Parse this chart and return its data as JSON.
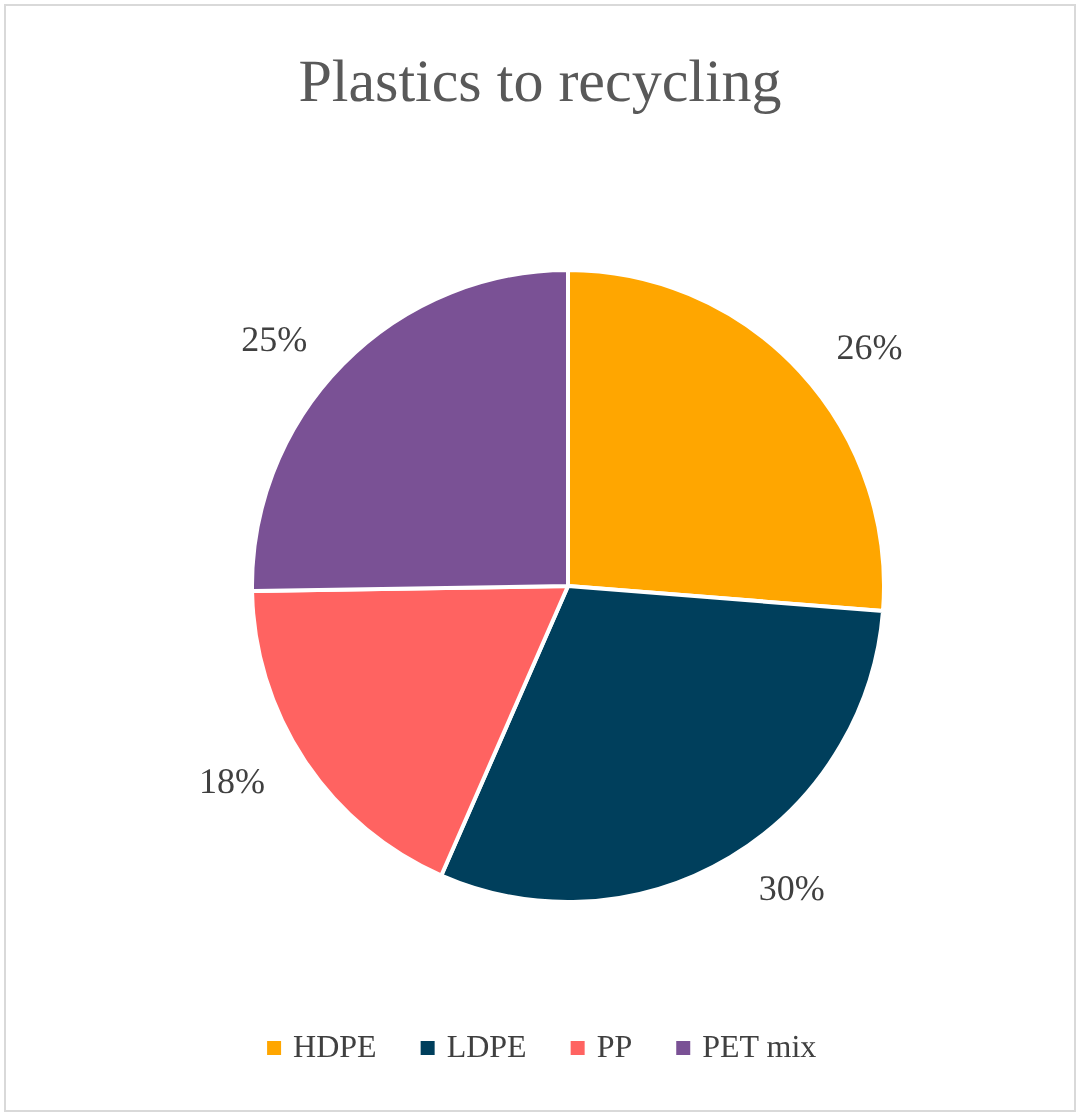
{
  "chart_data": {
    "type": "pie",
    "title": "Plastics to recycling",
    "categories": [
      "HDPE",
      "LDPE",
      "PP",
      "PET mix"
    ],
    "values": [
      26,
      30,
      18,
      25
    ],
    "colors": [
      "#ffa600",
      "#003f5c",
      "#ff6361",
      "#7a5195"
    ],
    "value_labels": [
      "26%",
      "30%",
      "18%",
      "25%"
    ],
    "legend": "bottom"
  }
}
